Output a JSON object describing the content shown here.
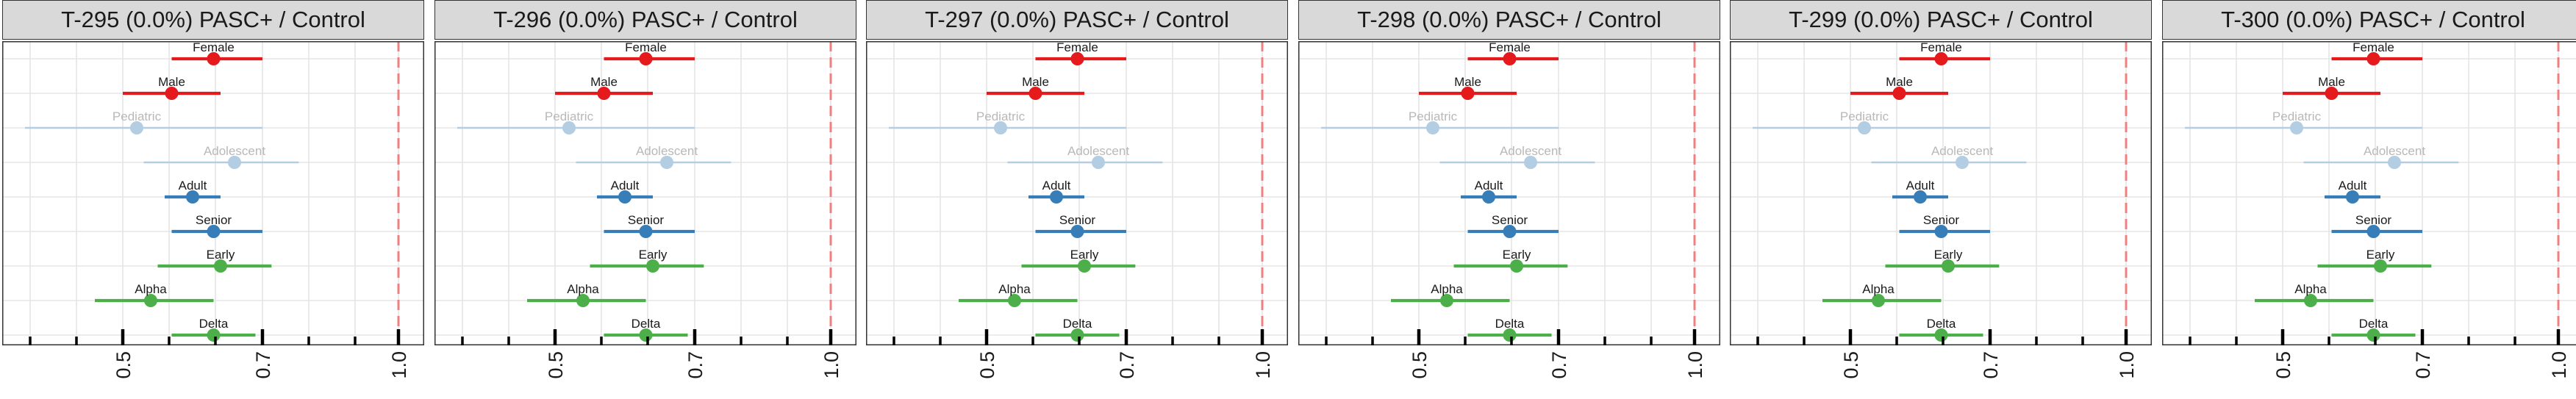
{
  "colors": {
    "sex": "#e41a1c",
    "age_bright": "#377eb8",
    "age_faded": "#b3cde3",
    "variant": "#4daf4a",
    "reference_line": "#f08080",
    "grid": "#e5e5e5",
    "panel_border": "#333333",
    "strip_bg": "#d9d9d9"
  },
  "chart_data": [
    {
      "type": "scatter",
      "panel_title": "T-295 (0.0%) PASC+ / Control",
      "x_ticks": [
        "0.5",
        "0.7",
        "1.0"
      ],
      "xlim": [
        0.36,
        1.01
      ],
      "reference_line": 1.0,
      "grid": true,
      "series": [
        {
          "label": "Female",
          "group": "sex",
          "estimate": 0.63,
          "lower": 0.57,
          "upper": 0.7
        },
        {
          "label": "Male",
          "group": "sex",
          "estimate": 0.57,
          "lower": 0.5,
          "upper": 0.64
        },
        {
          "label": "Pediatric",
          "group": "age_faded",
          "estimate": 0.52,
          "lower": 0.36,
          "upper": 0.7
        },
        {
          "label": "Adolescent",
          "group": "age_faded",
          "estimate": 0.66,
          "lower": 0.53,
          "upper": 0.78
        },
        {
          "label": "Adult",
          "group": "age_bright",
          "estimate": 0.6,
          "lower": 0.56,
          "upper": 0.64
        },
        {
          "label": "Senior",
          "group": "age_bright",
          "estimate": 0.63,
          "lower": 0.57,
          "upper": 0.7
        },
        {
          "label": "Early",
          "group": "variant",
          "estimate": 0.64,
          "lower": 0.55,
          "upper": 0.72
        },
        {
          "label": "Alpha",
          "group": "variant",
          "estimate": 0.54,
          "lower": 0.46,
          "upper": 0.63
        },
        {
          "label": "Delta",
          "group": "variant",
          "estimate": 0.63,
          "lower": 0.57,
          "upper": 0.69
        }
      ]
    },
    {
      "type": "scatter",
      "panel_title": "T-296 (0.0%) PASC+ / Control",
      "x_ticks": [
        "0.5",
        "0.7",
        "1.0"
      ],
      "xlim": [
        0.36,
        1.01
      ],
      "reference_line": 1.0,
      "grid": true,
      "series": [
        {
          "label": "Female",
          "group": "sex",
          "estimate": 0.63,
          "lower": 0.57,
          "upper": 0.7
        },
        {
          "label": "Male",
          "group": "sex",
          "estimate": 0.57,
          "lower": 0.5,
          "upper": 0.64
        },
        {
          "label": "Pediatric",
          "group": "age_faded",
          "estimate": 0.52,
          "lower": 0.36,
          "upper": 0.7
        },
        {
          "label": "Adolescent",
          "group": "age_faded",
          "estimate": 0.66,
          "lower": 0.53,
          "upper": 0.78
        },
        {
          "label": "Adult",
          "group": "age_bright",
          "estimate": 0.6,
          "lower": 0.56,
          "upper": 0.64
        },
        {
          "label": "Senior",
          "group": "age_bright",
          "estimate": 0.63,
          "lower": 0.57,
          "upper": 0.7
        },
        {
          "label": "Early",
          "group": "variant",
          "estimate": 0.64,
          "lower": 0.55,
          "upper": 0.72
        },
        {
          "label": "Alpha",
          "group": "variant",
          "estimate": 0.54,
          "lower": 0.46,
          "upper": 0.63
        },
        {
          "label": "Delta",
          "group": "variant",
          "estimate": 0.63,
          "lower": 0.57,
          "upper": 0.69
        }
      ]
    },
    {
      "type": "scatter",
      "panel_title": "T-297 (0.0%) PASC+ / Control",
      "x_ticks": [
        "0.5",
        "0.7",
        "1.0"
      ],
      "xlim": [
        0.36,
        1.01
      ],
      "reference_line": 1.0,
      "grid": true,
      "series": [
        {
          "label": "Female",
          "group": "sex",
          "estimate": 0.63,
          "lower": 0.57,
          "upper": 0.7
        },
        {
          "label": "Male",
          "group": "sex",
          "estimate": 0.57,
          "lower": 0.5,
          "upper": 0.64
        },
        {
          "label": "Pediatric",
          "group": "age_faded",
          "estimate": 0.52,
          "lower": 0.36,
          "upper": 0.7
        },
        {
          "label": "Adolescent",
          "group": "age_faded",
          "estimate": 0.66,
          "lower": 0.53,
          "upper": 0.78
        },
        {
          "label": "Adult",
          "group": "age_bright",
          "estimate": 0.6,
          "lower": 0.56,
          "upper": 0.64
        },
        {
          "label": "Senior",
          "group": "age_bright",
          "estimate": 0.63,
          "lower": 0.57,
          "upper": 0.7
        },
        {
          "label": "Early",
          "group": "variant",
          "estimate": 0.64,
          "lower": 0.55,
          "upper": 0.72
        },
        {
          "label": "Alpha",
          "group": "variant",
          "estimate": 0.54,
          "lower": 0.46,
          "upper": 0.63
        },
        {
          "label": "Delta",
          "group": "variant",
          "estimate": 0.63,
          "lower": 0.57,
          "upper": 0.69
        }
      ]
    },
    {
      "type": "scatter",
      "panel_title": "T-298 (0.0%) PASC+ / Control",
      "x_ticks": [
        "0.5",
        "0.7",
        "1.0"
      ],
      "xlim": [
        0.36,
        1.01
      ],
      "reference_line": 1.0,
      "grid": true,
      "series": [
        {
          "label": "Female",
          "group": "sex",
          "estimate": 0.63,
          "lower": 0.57,
          "upper": 0.7
        },
        {
          "label": "Male",
          "group": "sex",
          "estimate": 0.57,
          "lower": 0.5,
          "upper": 0.64
        },
        {
          "label": "Pediatric",
          "group": "age_faded",
          "estimate": 0.52,
          "lower": 0.36,
          "upper": 0.7
        },
        {
          "label": "Adolescent",
          "group": "age_faded",
          "estimate": 0.66,
          "lower": 0.53,
          "upper": 0.78
        },
        {
          "label": "Adult",
          "group": "age_bright",
          "estimate": 0.6,
          "lower": 0.56,
          "upper": 0.64
        },
        {
          "label": "Senior",
          "group": "age_bright",
          "estimate": 0.63,
          "lower": 0.57,
          "upper": 0.7
        },
        {
          "label": "Early",
          "group": "variant",
          "estimate": 0.64,
          "lower": 0.55,
          "upper": 0.72
        },
        {
          "label": "Alpha",
          "group": "variant",
          "estimate": 0.54,
          "lower": 0.46,
          "upper": 0.63
        },
        {
          "label": "Delta",
          "group": "variant",
          "estimate": 0.63,
          "lower": 0.57,
          "upper": 0.69
        }
      ]
    },
    {
      "type": "scatter",
      "panel_title": "T-299 (0.0%) PASC+ / Control",
      "x_ticks": [
        "0.5",
        "0.7",
        "1.0"
      ],
      "xlim": [
        0.36,
        1.01
      ],
      "reference_line": 1.0,
      "grid": true,
      "series": [
        {
          "label": "Female",
          "group": "sex",
          "estimate": 0.63,
          "lower": 0.57,
          "upper": 0.7
        },
        {
          "label": "Male",
          "group": "sex",
          "estimate": 0.57,
          "lower": 0.5,
          "upper": 0.64
        },
        {
          "label": "Pediatric",
          "group": "age_faded",
          "estimate": 0.52,
          "lower": 0.36,
          "upper": 0.7
        },
        {
          "label": "Adolescent",
          "group": "age_faded",
          "estimate": 0.66,
          "lower": 0.53,
          "upper": 0.78
        },
        {
          "label": "Adult",
          "group": "age_bright",
          "estimate": 0.6,
          "lower": 0.56,
          "upper": 0.64
        },
        {
          "label": "Senior",
          "group": "age_bright",
          "estimate": 0.63,
          "lower": 0.57,
          "upper": 0.7
        },
        {
          "label": "Early",
          "group": "variant",
          "estimate": 0.64,
          "lower": 0.55,
          "upper": 0.72
        },
        {
          "label": "Alpha",
          "group": "variant",
          "estimate": 0.54,
          "lower": 0.46,
          "upper": 0.63
        },
        {
          "label": "Delta",
          "group": "variant",
          "estimate": 0.63,
          "lower": 0.57,
          "upper": 0.69
        }
      ]
    },
    {
      "type": "scatter",
      "panel_title": "T-300 (0.0%) PASC+ / Control",
      "x_ticks": [
        "0.5",
        "0.7",
        "1.0"
      ],
      "xlim": [
        0.36,
        1.01
      ],
      "reference_line": 1.0,
      "grid": true,
      "series": [
        {
          "label": "Female",
          "group": "sex",
          "estimate": 0.63,
          "lower": 0.57,
          "upper": 0.7
        },
        {
          "label": "Male",
          "group": "sex",
          "estimate": 0.57,
          "lower": 0.5,
          "upper": 0.64
        },
        {
          "label": "Pediatric",
          "group": "age_faded",
          "estimate": 0.52,
          "lower": 0.36,
          "upper": 0.7
        },
        {
          "label": "Adolescent",
          "group": "age_faded",
          "estimate": 0.66,
          "lower": 0.53,
          "upper": 0.78
        },
        {
          "label": "Adult",
          "group": "age_bright",
          "estimate": 0.6,
          "lower": 0.56,
          "upper": 0.64
        },
        {
          "label": "Senior",
          "group": "age_bright",
          "estimate": 0.63,
          "lower": 0.57,
          "upper": 0.7
        },
        {
          "label": "Early",
          "group": "variant",
          "estimate": 0.64,
          "lower": 0.55,
          "upper": 0.72
        },
        {
          "label": "Alpha",
          "group": "variant",
          "estimate": 0.54,
          "lower": 0.46,
          "upper": 0.63
        },
        {
          "label": "Delta",
          "group": "variant",
          "estimate": 0.63,
          "lower": 0.57,
          "upper": 0.69
        }
      ]
    }
  ]
}
